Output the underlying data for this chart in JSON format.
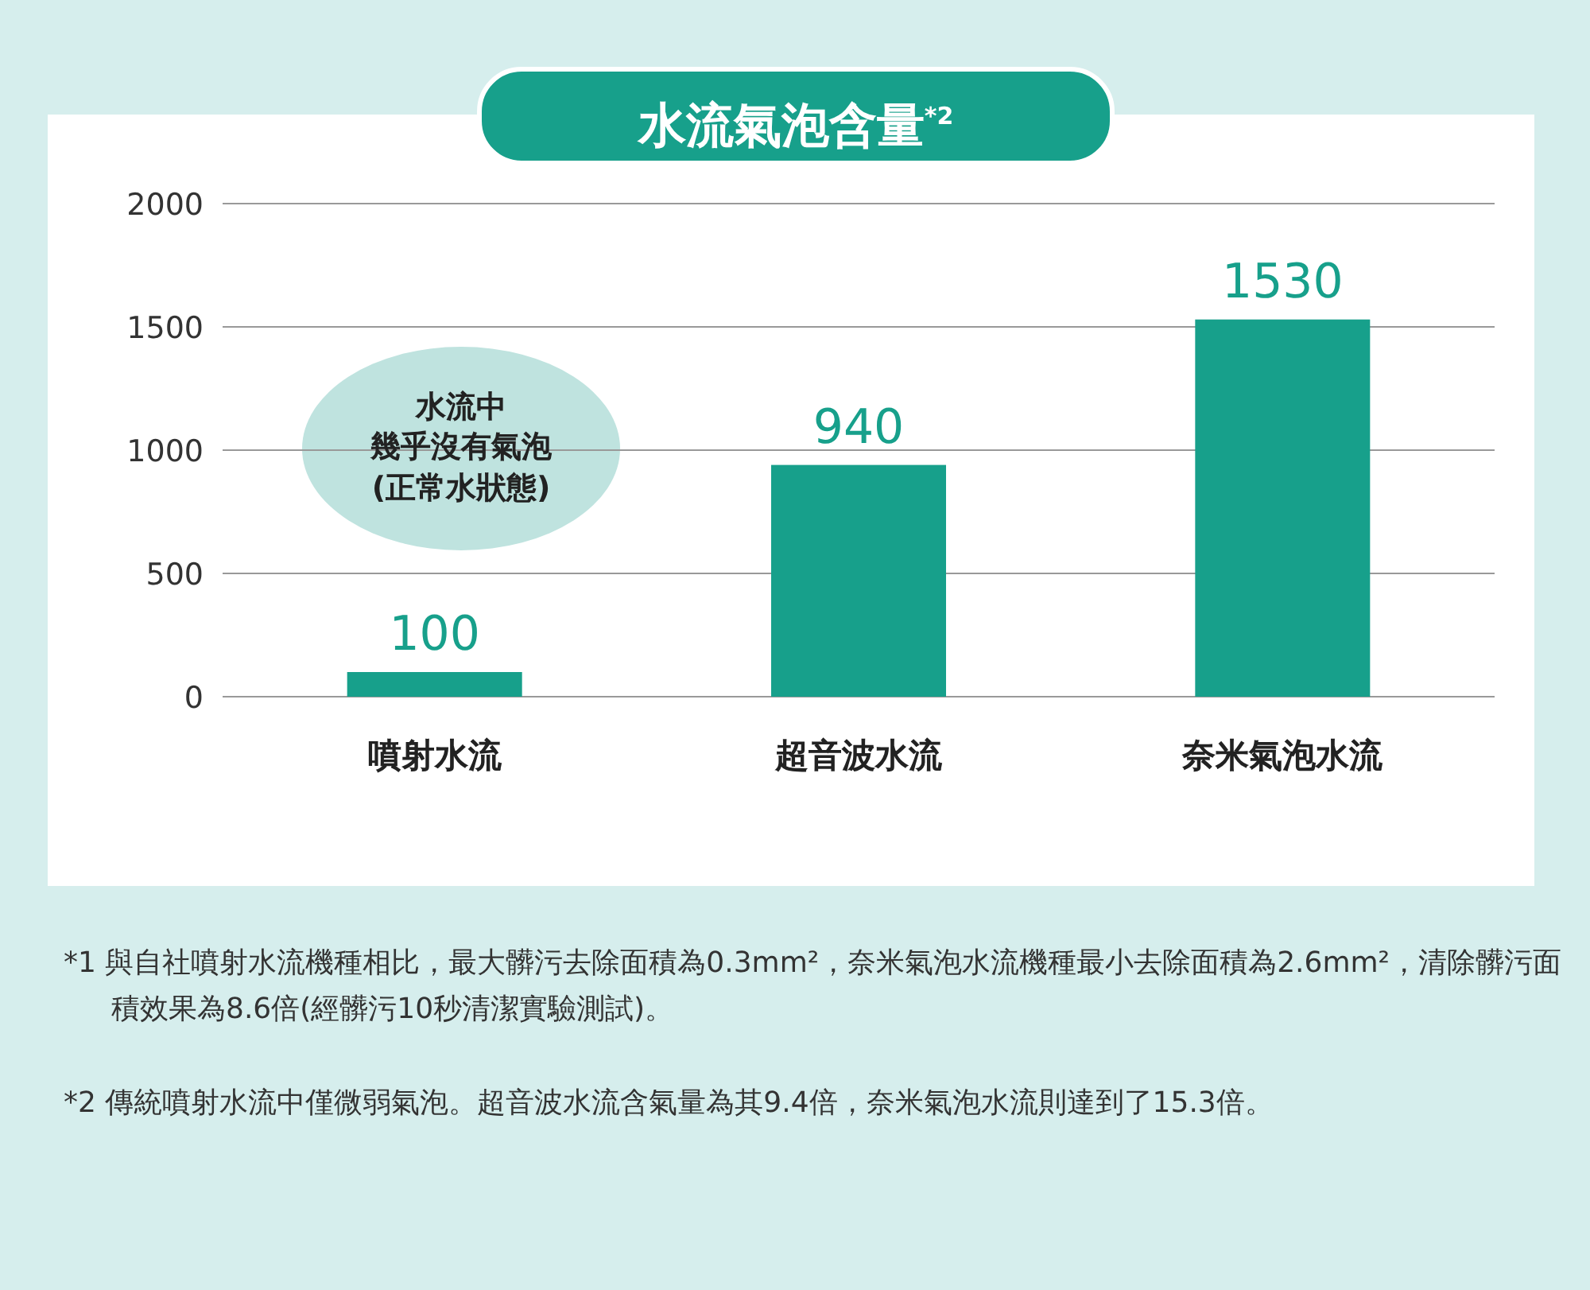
{
  "chart_data": {
    "type": "bar",
    "title": "水流氣泡含量$^{*2}$",
    "categories": [
      "噴射水流",
      "超音波水流",
      "奈米氣泡水流"
    ],
    "values": [
      100,
      940,
      1530
    ],
    "color": "#17a08b",
    "ylim": [
      0,
      2000
    ],
    "yticks": [
      0,
      500,
      1000,
      1500,
      2000
    ],
    "grid": "y",
    "data_labels": true,
    "annotations": [
      "水流中",
      "幾乎沒有氣泡",
      "(正常水狀態)",
      "*1 與自社噴射水流機種相比，最大髒污去除面積為0.3mm²，奈米氣泡水流機種最小去除面積為2.6mm²，清除髒污面積效果為8.6倍(經髒污10秒清潔實驗測試)。",
      "*2 傳統噴射水流中僅微弱氣泡。超音波水流含氣量為其9.4倍，奈米氣泡水流則達到了15.3倍。"
    ]
  }
}
